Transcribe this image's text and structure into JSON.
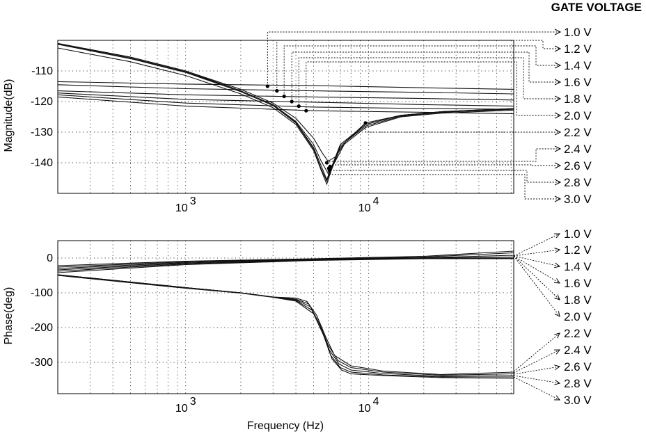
{
  "legend": {
    "title": "GATE VOLTAGE",
    "entries": [
      "1.0 V",
      "1.2 V",
      "1.4 V",
      "1.6 V",
      "1.8 V",
      "2.0 V",
      "2.2 V",
      "2.4 V",
      "2.6 V",
      "2.8 V",
      "3.0 V"
    ]
  },
  "chart_data": [
    {
      "type": "line",
      "ylabel": "Magnitude(dB)",
      "xlabel": "",
      "xscale": "log",
      "xlim": [
        200,
        62000
      ],
      "ylim": [
        -150,
        -100
      ],
      "yticks": [
        -110,
        -120,
        -130,
        -140
      ],
      "ytick_labels": [
        "-110",
        "-120",
        "-130",
        "-140"
      ],
      "xticks": [
        1000,
        10000
      ],
      "xtick_labels": [
        {
          "base": "10",
          "exp": "3"
        },
        {
          "base": "10",
          "exp": "4"
        }
      ],
      "grid": true,
      "markers": [
        {
          "voltage": "1.0 V",
          "x": 2800,
          "y": -115
        },
        {
          "voltage": "1.2 V",
          "x": 3150,
          "y": -116.5
        },
        {
          "voltage": "1.4 V",
          "x": 3450,
          "y": -118.3
        },
        {
          "voltage": "1.6 V",
          "x": 3800,
          "y": -120
        },
        {
          "voltage": "1.8 V",
          "x": 4150,
          "y": -121.5
        },
        {
          "voltage": "2.0 V",
          "x": 4550,
          "y": -123
        },
        {
          "voltage": "2.2 V",
          "x": 9600,
          "y": -127
        },
        {
          "voltage": "2.4 V",
          "x": 5900,
          "y": -140
        },
        {
          "voltage": "2.6 V",
          "x": 6150,
          "y": -141.2
        },
        {
          "voltage": "2.8 V",
          "x": 6050,
          "y": -141.8
        },
        {
          "voltage": "3.0 V",
          "x": 6100,
          "y": -142.5
        }
      ],
      "series": [
        {
          "name": "1.0 V",
          "x": [
            200,
            1000,
            5000,
            20000,
            62000
          ],
          "y": [
            -113.5,
            -114.3,
            -114.8,
            -115.5,
            -116
          ]
        },
        {
          "name": "1.2 V",
          "x": [
            200,
            1000,
            5000,
            20000,
            62000
          ],
          "y": [
            -114.5,
            -115.8,
            -116.5,
            -117,
            -117.5
          ]
        },
        {
          "name": "1.4 V",
          "x": [
            200,
            1000,
            5000,
            20000,
            62000
          ],
          "y": [
            -116.5,
            -117.8,
            -118.5,
            -119,
            -119.5
          ]
        },
        {
          "name": "1.6 V",
          "x": [
            200,
            1000,
            5000,
            20000,
            62000
          ],
          "y": [
            -117.2,
            -119.3,
            -120.2,
            -121,
            -121.5
          ]
        },
        {
          "name": "1.8 V",
          "x": [
            200,
            1000,
            5000,
            20000,
            62000
          ],
          "y": [
            -117.8,
            -120.5,
            -121.8,
            -122.3,
            -122.5
          ]
        },
        {
          "name": "2.0 V",
          "x": [
            200,
            1000,
            5000,
            20000,
            62000
          ],
          "y": [
            -118.5,
            -121.5,
            -123,
            -123.5,
            -124
          ]
        },
        {
          "name": "2.2 V",
          "x": [
            200,
            500,
            1000,
            2000,
            3000,
            4000,
            5000,
            5600,
            6000,
            6600,
            7500,
            9600,
            15000,
            25000,
            62000
          ],
          "y": [
            -101,
            -105.5,
            -110,
            -116,
            -120.5,
            -125.5,
            -132,
            -137,
            -139.5,
            -138,
            -133,
            -127,
            -124.5,
            -123.5,
            -122.5
          ]
        },
        {
          "name": "2.4 V",
          "x": [
            200,
            500,
            1000,
            2000,
            3000,
            4000,
            5000,
            5500,
            6000,
            6500,
            7500,
            9600,
            15000,
            25000,
            62000
          ],
          "y": [
            -101,
            -105.5,
            -110,
            -116.5,
            -121,
            -126.5,
            -134,
            -139.5,
            -143.5,
            -140,
            -133,
            -127.5,
            -124.5,
            -123.3,
            -122.3
          ]
        },
        {
          "name": "2.6 V",
          "x": [
            200,
            500,
            1000,
            2000,
            3000,
            4000,
            5000,
            5500,
            5900,
            6300,
            7000,
            9600,
            15000,
            25000,
            62000
          ],
          "y": [
            -101.2,
            -105.8,
            -110.3,
            -116.5,
            -121,
            -126.8,
            -135,
            -141,
            -145.5,
            -141,
            -134,
            -127.5,
            -124.5,
            -123.3,
            -122.3
          ]
        },
        {
          "name": "2.8 V",
          "x": [
            200,
            500,
            1000,
            2000,
            3000,
            4000,
            5000,
            5500,
            5900,
            6200,
            7000,
            9600,
            15000,
            25000,
            62000
          ],
          "y": [
            -101.3,
            -106,
            -110.5,
            -116.8,
            -121.3,
            -127,
            -135.5,
            -142,
            -146,
            -142.5,
            -134.5,
            -128,
            -124.8,
            -123.5,
            -122.5
          ]
        },
        {
          "name": "3.0 V",
          "x": [
            200,
            500,
            1000,
            2000,
            3000,
            4000,
            5000,
            5500,
            5900,
            6200,
            7000,
            9600,
            15000,
            25000,
            62000
          ],
          "y": [
            -102.5,
            -107,
            -111.5,
            -117.5,
            -122,
            -127.5,
            -136,
            -142.5,
            -147,
            -143,
            -135,
            -128.5,
            -125,
            -123.8,
            -122.8
          ]
        }
      ]
    },
    {
      "type": "line",
      "ylabel": "Phase(deg)",
      "xlabel": "Frequency (Hz)",
      "xscale": "log",
      "xlim": [
        200,
        62000
      ],
      "ylim": [
        -390,
        50
      ],
      "yticks": [
        0,
        -100,
        -200,
        -300
      ],
      "ytick_labels": [
        "0",
        "-100",
        "-200",
        "-300"
      ],
      "xticks": [
        1000,
        10000
      ],
      "xtick_labels": [
        {
          "base": "10",
          "exp": "3"
        },
        {
          "base": "10",
          "exp": "4"
        }
      ],
      "grid": true,
      "series": [
        {
          "name": "1.0 V",
          "x": [
            200,
            1000,
            5000,
            20000,
            62000
          ],
          "y": [
            -22,
            -9,
            -2,
            5,
            20
          ]
        },
        {
          "name": "1.2 V",
          "x": [
            200,
            1000,
            5000,
            20000,
            62000
          ],
          "y": [
            -26,
            -11,
            -3,
            3,
            15
          ]
        },
        {
          "name": "1.4 V",
          "x": [
            200,
            1000,
            5000,
            20000,
            62000
          ],
          "y": [
            -30,
            -13,
            -4,
            1,
            8
          ]
        },
        {
          "name": "1.6 V",
          "x": [
            200,
            1000,
            5000,
            20000,
            62000
          ],
          "y": [
            -34,
            -15,
            -5,
            0,
            3
          ]
        },
        {
          "name": "1.8 V",
          "x": [
            200,
            1000,
            5000,
            20000,
            62000
          ],
          "y": [
            -38,
            -17,
            -6,
            -1,
            0
          ]
        },
        {
          "name": "2.0 V",
          "x": [
            200,
            1000,
            5000,
            20000,
            62000
          ],
          "y": [
            -42,
            -19,
            -7,
            -2,
            -2
          ]
        },
        {
          "name": "2.2 V",
          "x": [
            200,
            1000,
            2000,
            3000,
            4000,
            4600,
            5200,
            5800,
            6500,
            8000,
            12000,
            25000,
            62000
          ],
          "y": [
            -48,
            -85,
            -100,
            -112,
            -115,
            -125,
            -165,
            -225,
            -280,
            -310,
            -325,
            -335,
            -328
          ]
        },
        {
          "name": "2.4 V",
          "x": [
            200,
            1000,
            2000,
            3000,
            4000,
            4700,
            5400,
            6000,
            6800,
            8000,
            12000,
            25000,
            62000
          ],
          "y": [
            -48,
            -85,
            -100,
            -112,
            -118,
            -132,
            -190,
            -250,
            -295,
            -315,
            -328,
            -337,
            -333
          ]
        },
        {
          "name": "2.6 V",
          "x": [
            200,
            1000,
            2000,
            3000,
            4000,
            4800,
            5500,
            6100,
            6900,
            8000,
            12000,
            25000,
            62000
          ],
          "y": [
            -48,
            -85,
            -100,
            -112,
            -120,
            -140,
            -205,
            -265,
            -305,
            -322,
            -332,
            -340,
            -338
          ]
        },
        {
          "name": "2.8 V",
          "x": [
            200,
            1000,
            2000,
            3000,
            4000,
            4900,
            5600,
            6200,
            7000,
            8000,
            12000,
            25000,
            62000
          ],
          "y": [
            -48,
            -85,
            -100,
            -112,
            -122,
            -150,
            -215,
            -280,
            -315,
            -328,
            -336,
            -342,
            -342
          ]
        },
        {
          "name": "3.0 V",
          "x": [
            200,
            1000,
            2000,
            3000,
            4000,
            5000,
            5700,
            6300,
            7100,
            8000,
            12000,
            25000,
            62000
          ],
          "y": [
            -50,
            -87,
            -101,
            -113,
            -124,
            -160,
            -225,
            -290,
            -322,
            -333,
            -338,
            -344,
            -346
          ]
        }
      ]
    }
  ]
}
